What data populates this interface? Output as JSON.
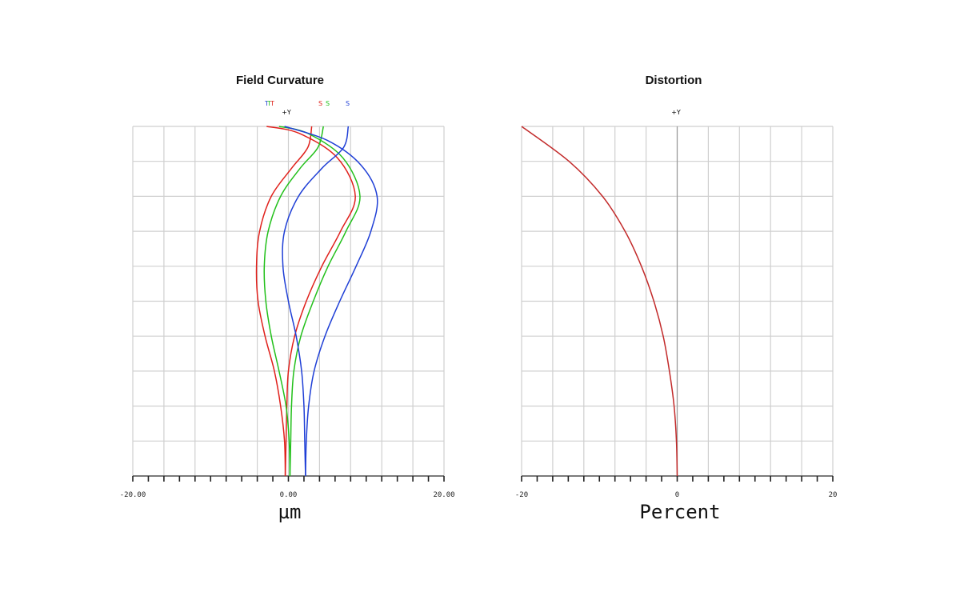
{
  "chart_data": [
    {
      "type": "line",
      "title": "Field Curvature",
      "legend": [
        {
          "label": "T",
          "color": "#1f3fd6"
        },
        {
          "label": "T",
          "color": "#22c01a"
        },
        {
          "label": "T",
          "color": "#e0201b"
        },
        {
          "label": "S",
          "color": "#e0201b"
        },
        {
          "label": "S",
          "color": "#22c01a"
        },
        {
          "label": "S",
          "color": "#1f3fd6"
        }
      ],
      "y_marker": "+Y",
      "xlabel": "µm",
      "xlim": [
        -20,
        20
      ],
      "ylim": [
        0,
        1
      ],
      "x_tick_labels": [
        "-20.00",
        "0.00",
        "20.00"
      ],
      "x_tick_values": [
        -20,
        0,
        20
      ],
      "grid": true,
      "series": [
        {
          "color": "#e0201b",
          "points": [
            [
              -0.4,
              0
            ],
            [
              -0.5,
              0.1
            ],
            [
              -1.0,
              0.2
            ],
            [
              -1.8,
              0.3
            ],
            [
              -3.0,
              0.4
            ],
            [
              -3.9,
              0.5
            ],
            [
              -4.1,
              0.6
            ],
            [
              -3.7,
              0.7
            ],
            [
              -2.2,
              0.8
            ],
            [
              0.4,
              0.88
            ],
            [
              2.5,
              0.94
            ],
            [
              3.0,
              1.0
            ]
          ]
        },
        {
          "color": "#e0201b",
          "points": [
            [
              -0.4,
              0
            ],
            [
              -0.3,
              0.1
            ],
            [
              -0.2,
              0.2
            ],
            [
              0.0,
              0.3
            ],
            [
              0.8,
              0.4
            ],
            [
              2.3,
              0.5
            ],
            [
              4.3,
              0.6
            ],
            [
              6.7,
              0.7
            ],
            [
              8.6,
              0.8
            ],
            [
              6.3,
              0.91
            ],
            [
              1.4,
              0.98
            ],
            [
              -2.8,
              1.0
            ]
          ]
        },
        {
          "color": "#22c01a",
          "points": [
            [
              0.2,
              0
            ],
            [
              0.1,
              0.1
            ],
            [
              -0.3,
              0.2
            ],
            [
              -1.2,
              0.3
            ],
            [
              -2.2,
              0.4
            ],
            [
              -2.9,
              0.5
            ],
            [
              -3.1,
              0.6
            ],
            [
              -2.6,
              0.7
            ],
            [
              -1.0,
              0.8
            ],
            [
              1.5,
              0.88
            ],
            [
              3.8,
              0.94
            ],
            [
              4.5,
              1.0
            ]
          ]
        },
        {
          "color": "#22c01a",
          "points": [
            [
              0.2,
              0
            ],
            [
              0.3,
              0.1
            ],
            [
              0.4,
              0.2
            ],
            [
              0.7,
              0.3
            ],
            [
              1.6,
              0.4
            ],
            [
              3.2,
              0.5
            ],
            [
              5.1,
              0.6
            ],
            [
              7.4,
              0.7
            ],
            [
              9.2,
              0.8
            ],
            [
              7.0,
              0.91
            ],
            [
              2.5,
              0.98
            ],
            [
              -1.2,
              1.0
            ]
          ]
        },
        {
          "color": "#1f3fd6",
          "points": [
            [
              2.2,
              0
            ],
            [
              2.1,
              0.1
            ],
            [
              2.0,
              0.2
            ],
            [
              1.7,
              0.3
            ],
            [
              1.0,
              0.4
            ],
            [
              0.0,
              0.5
            ],
            [
              -0.7,
              0.6
            ],
            [
              -0.5,
              0.7
            ],
            [
              1.3,
              0.8
            ],
            [
              4.3,
              0.88
            ],
            [
              7.1,
              0.94
            ],
            [
              7.7,
              1.0
            ]
          ]
        },
        {
          "color": "#1f3fd6",
          "points": [
            [
              2.2,
              0
            ],
            [
              2.3,
              0.1
            ],
            [
              2.6,
              0.2
            ],
            [
              3.3,
              0.3
            ],
            [
              4.7,
              0.4
            ],
            [
              6.6,
              0.5
            ],
            [
              8.7,
              0.6
            ],
            [
              10.6,
              0.7
            ],
            [
              11.4,
              0.8
            ],
            [
              9.3,
              0.89
            ],
            [
              5.0,
              0.96
            ],
            [
              -0.5,
              1.0
            ]
          ]
        }
      ]
    },
    {
      "type": "line",
      "title": "Distortion",
      "y_marker": "+Y",
      "xlabel": "Percent",
      "xlim": [
        -20,
        20
      ],
      "ylim": [
        0,
        1
      ],
      "x_tick_labels": [
        "-20",
        "0",
        "20"
      ],
      "x_tick_values": [
        -20,
        0,
        20
      ],
      "grid": true,
      "series": [
        {
          "color": "#c22a2a",
          "points": [
            [
              0,
              0
            ],
            [
              -0.1,
              0.1
            ],
            [
              -0.4,
              0.2
            ],
            [
              -1.0,
              0.3
            ],
            [
              -1.8,
              0.4
            ],
            [
              -3.0,
              0.5
            ],
            [
              -4.6,
              0.6
            ],
            [
              -6.7,
              0.7
            ],
            [
              -9.6,
              0.8
            ],
            [
              -13.9,
              0.9
            ],
            [
              -20,
              1.0
            ]
          ]
        }
      ]
    }
  ]
}
